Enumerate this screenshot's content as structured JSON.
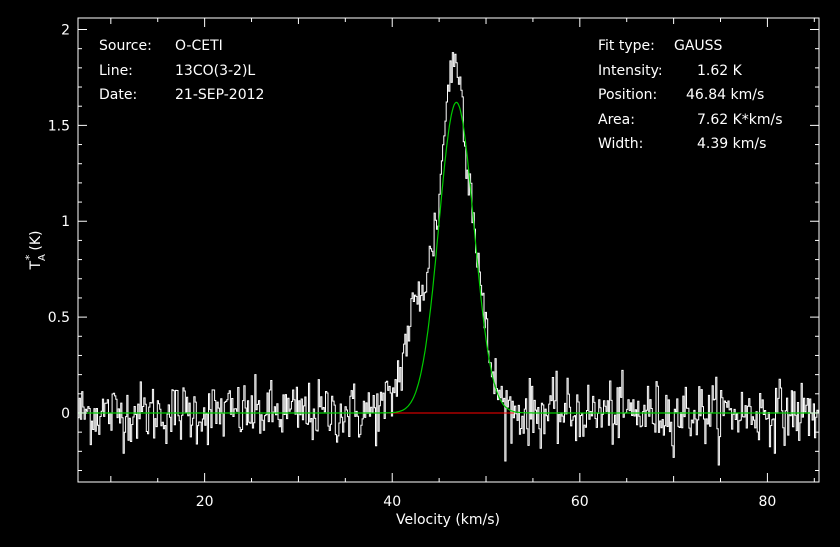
{
  "chart_data": {
    "type": "line",
    "xlabel": "Velocity (km/s)",
    "ylabel_main": "T",
    "ylabel_sup": "*",
    "ylabel_sub": "A",
    "ylabel_units": "(K)",
    "xlim": [
      6.5,
      85.5
    ],
    "ylim": [
      -0.36,
      2.06
    ],
    "xticks": [
      20,
      40,
      60,
      80
    ],
    "yticks": [
      0,
      0.5,
      1,
      1.5,
      2
    ],
    "ytick_labels": [
      "0",
      "0.5",
      "1",
      "1.5",
      "2"
    ],
    "info_left": [
      {
        "label": "Source:",
        "value": "O-CETI"
      },
      {
        "label": "Line:",
        "value": "13CO(3-2)L"
      },
      {
        "label": "Date:",
        "value": "21-SEP-2012"
      }
    ],
    "info_right": [
      {
        "label": "Fit type:",
        "value": "GAUSS"
      },
      {
        "label": "Intensity:",
        "value": "1.62 K"
      },
      {
        "label": "Position:",
        "value": "46.84 km/s"
      },
      {
        "label": "Area:",
        "value": "7.62 K*km/s"
      },
      {
        "label": "Width:",
        "value": "4.39 km/s"
      }
    ],
    "noise_rms": 0.08,
    "series": [
      {
        "kind": "spectrum",
        "color": "#ffffff",
        "x": [
          7,
          10,
          13,
          16,
          19,
          22,
          25,
          28,
          31,
          34,
          37,
          39,
          40,
          41,
          42,
          43,
          44,
          45,
          46,
          47,
          48,
          49,
          50,
          51,
          52,
          53,
          56,
          59,
          62,
          65,
          68,
          71,
          74,
          77,
          80,
          83,
          85
        ],
        "y": [
          0,
          0,
          0,
          0,
          0,
          0,
          0,
          0,
          0,
          0,
          0,
          0.02,
          0.08,
          0.25,
          0.5,
          0.62,
          0.78,
          1.1,
          1.75,
          1.85,
          1.35,
          0.9,
          0.4,
          0.15,
          0.03,
          0,
          0,
          0,
          0,
          0,
          0,
          0,
          0,
          0,
          0,
          0,
          0
        ]
      },
      {
        "kind": "gaussian-fit",
        "color": "#00cc00",
        "amplitude": 1.62,
        "center": 46.84,
        "fwhm": 4.39
      },
      {
        "kind": "baseline",
        "color": "#ff0000",
        "x": [
          38.5,
          53
        ],
        "y": [
          0,
          0
        ]
      }
    ]
  }
}
